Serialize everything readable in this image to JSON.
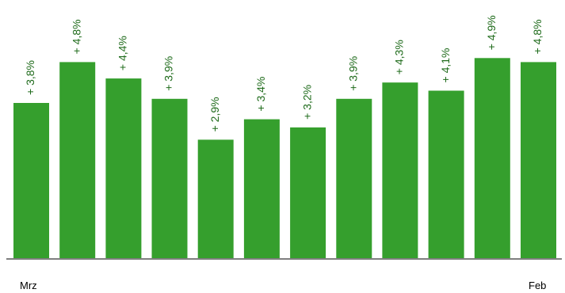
{
  "chart_data": {
    "type": "bar",
    "values": [
      3.8,
      4.8,
      4.4,
      3.9,
      2.9,
      3.4,
      3.2,
      3.9,
      4.3,
      4.1,
      4.9,
      4.8
    ],
    "labels": [
      "+ 3,8%",
      "+ 4,8%",
      "+ 4,4%",
      "+ 3,9%",
      "+ 2,9%",
      "+ 3,4%",
      "+ 3,2%",
      "+ 3,9%",
      "+ 4,3%",
      "+ 4,1%",
      "+ 4,9%",
      "+ 4,8%"
    ],
    "x_start_label": "Mrz",
    "x_end_label": "Feb",
    "ylim": [
      0,
      5
    ],
    "grid": false,
    "colors": {
      "bar": "#359f2d",
      "label": "#1f6b1b",
      "axis": "#7f7f7f"
    }
  }
}
